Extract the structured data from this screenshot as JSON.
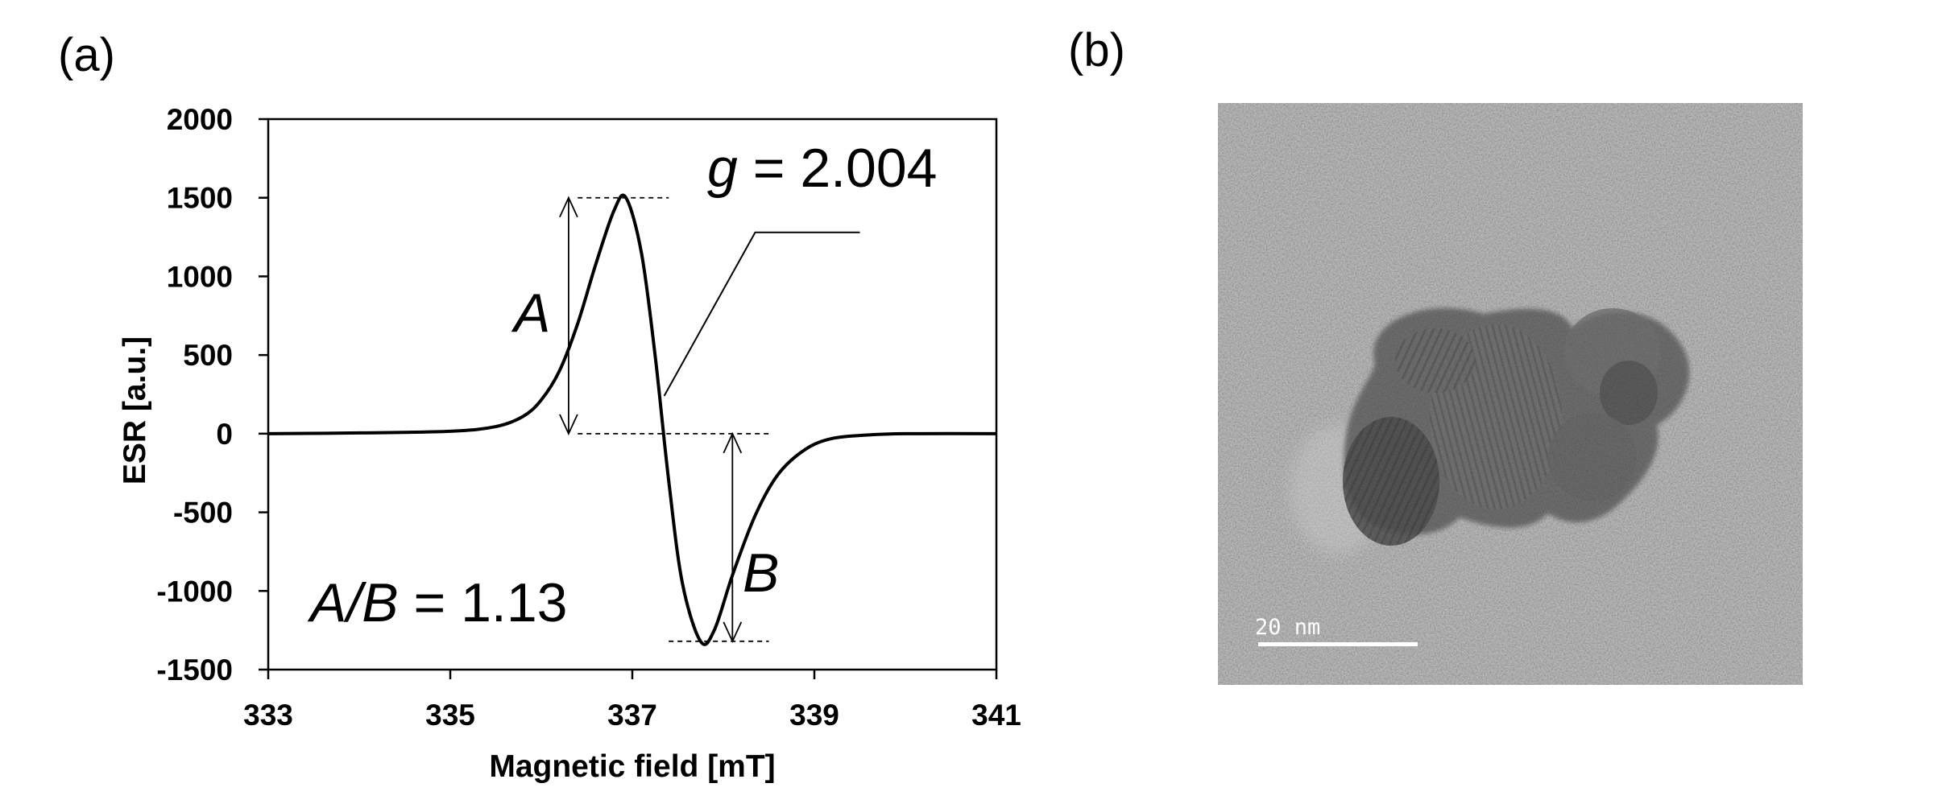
{
  "panels": {
    "a_label": "(a)",
    "b_label": "(b)"
  },
  "chart_data": {
    "type": "line",
    "title": "",
    "xlabel": "Magnetic field [mT]",
    "ylabel": "ESR [a.u.]",
    "xlim": [
      333,
      341
    ],
    "ylim": [
      -1500,
      2000
    ],
    "xticks": [
      333,
      335,
      337,
      339,
      341
    ],
    "yticks": [
      2000,
      1500,
      1000,
      500,
      0,
      -500,
      -1000,
      -1500
    ],
    "grid": false,
    "series": [
      {
        "x": [
          333,
          334,
          335,
          335.5,
          335.8,
          336.0,
          336.2,
          336.4,
          336.6,
          336.8,
          336.93,
          337.1,
          337.25,
          337.4,
          337.55,
          337.75,
          337.9,
          338.1,
          338.35,
          338.6,
          338.9,
          339.2,
          339.6,
          340.0,
          341
        ],
        "y": [
          0,
          5,
          15,
          45,
          110,
          215,
          400,
          700,
          1080,
          1420,
          1500,
          1150,
          500,
          -300,
          -950,
          -1320,
          -1250,
          -900,
          -520,
          -260,
          -100,
          -30,
          -8,
          0,
          0
        ]
      }
    ],
    "annotations": {
      "g_prefix": "g",
      "g_rest": " = 2.004",
      "a": "A",
      "b": "B",
      "ratio_prefix": "A/B",
      "ratio_rest": " = 1.13"
    }
  },
  "tem_image": {
    "scale_label": "20 nm"
  }
}
